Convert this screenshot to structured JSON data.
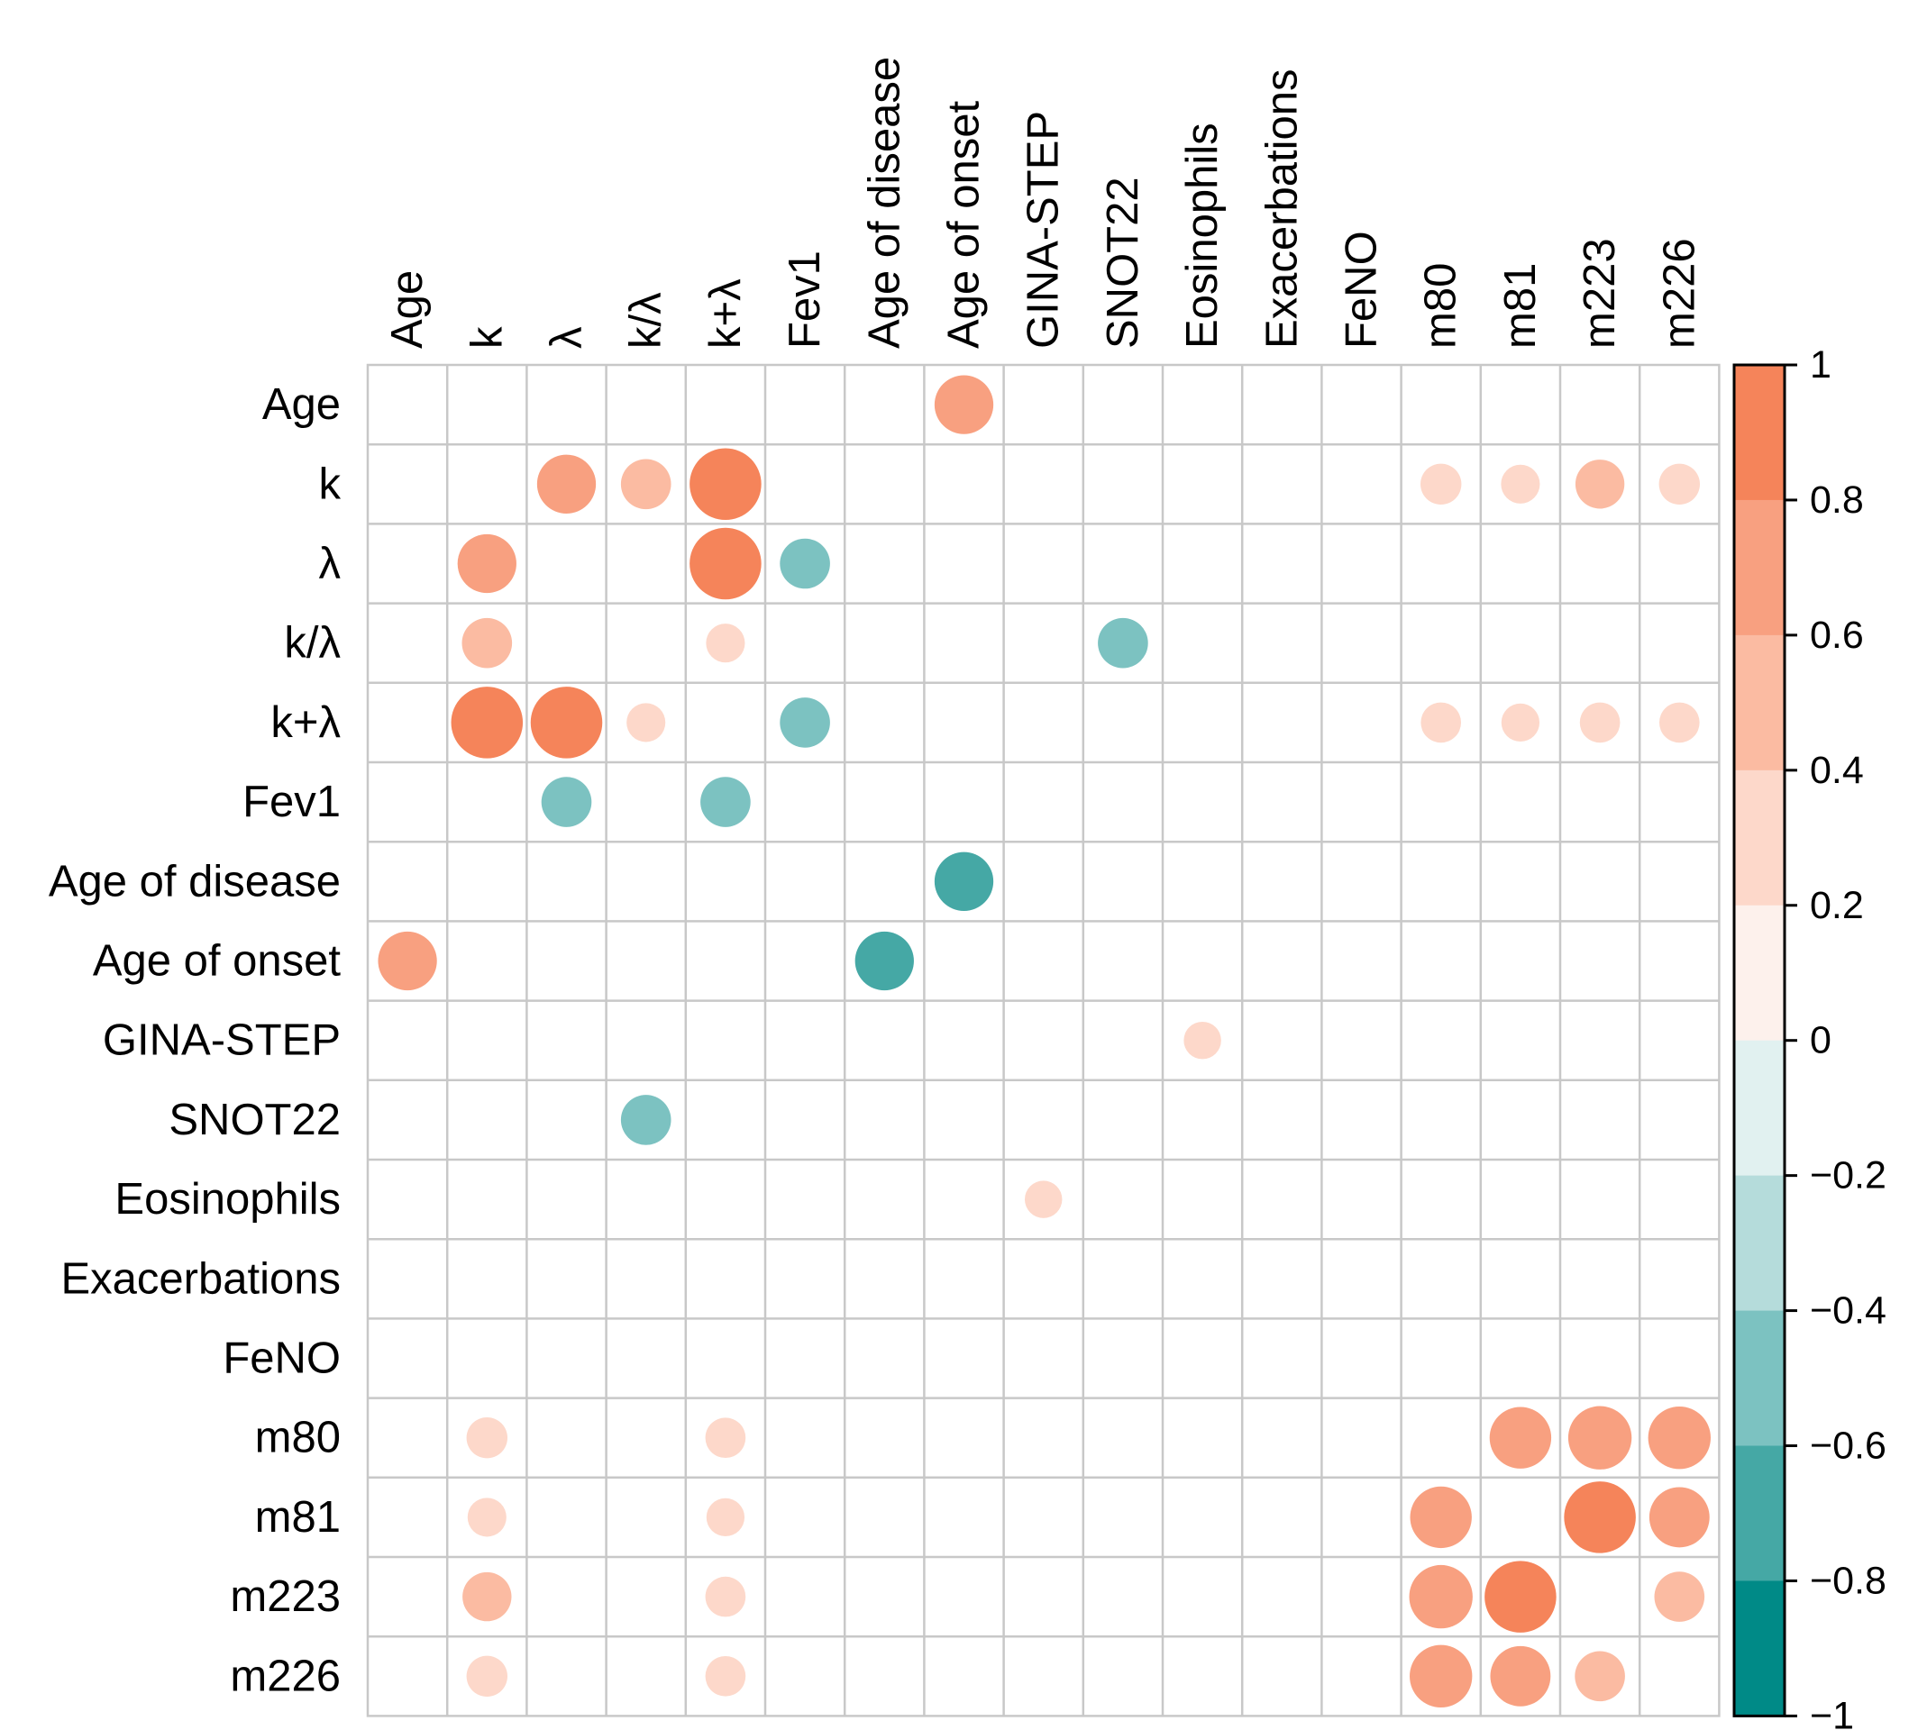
{
  "chart_data": {
    "type": "heatmap",
    "title": "",
    "variables": [
      "Age",
      "k",
      "λ",
      "k/λ",
      "k+λ",
      "Fev1",
      "Age of disease",
      "Age of onset",
      "GINA-STEP",
      "SNOT22",
      "Eosinophils",
      "Exacerbations",
      "FeNO",
      "m80",
      "m81",
      "m223",
      "m226"
    ],
    "cells": [
      {
        "row": "Age",
        "col": "Age of onset",
        "value": 0.62
      },
      {
        "row": "k",
        "col": "λ",
        "value": 0.62
      },
      {
        "row": "k",
        "col": "k/λ",
        "value": 0.45
      },
      {
        "row": "k",
        "col": "k+λ",
        "value": 0.92
      },
      {
        "row": "k",
        "col": "m80",
        "value": 0.3
      },
      {
        "row": "k",
        "col": "m81",
        "value": 0.27
      },
      {
        "row": "k",
        "col": "m223",
        "value": 0.43
      },
      {
        "row": "k",
        "col": "m226",
        "value": 0.3
      },
      {
        "row": "λ",
        "col": "k",
        "value": 0.62
      },
      {
        "row": "λ",
        "col": "k+λ",
        "value": 0.92
      },
      {
        "row": "λ",
        "col": "Fev1",
        "value": -0.45
      },
      {
        "row": "k/λ",
        "col": "k",
        "value": 0.45
      },
      {
        "row": "k/λ",
        "col": "k+λ",
        "value": 0.27
      },
      {
        "row": "k/λ",
        "col": "SNOT22",
        "value": -0.45
      },
      {
        "row": "k+λ",
        "col": "k",
        "value": 0.92
      },
      {
        "row": "k+λ",
        "col": "λ",
        "value": 0.92
      },
      {
        "row": "k+λ",
        "col": "k/λ",
        "value": 0.27
      },
      {
        "row": "k+λ",
        "col": "Fev1",
        "value": -0.45
      },
      {
        "row": "k+λ",
        "col": "m80",
        "value": 0.29
      },
      {
        "row": "k+λ",
        "col": "m81",
        "value": 0.26
      },
      {
        "row": "k+λ",
        "col": "m223",
        "value": 0.29
      },
      {
        "row": "k+λ",
        "col": "m226",
        "value": 0.29
      },
      {
        "row": "Fev1",
        "col": "λ",
        "value": -0.45
      },
      {
        "row": "Fev1",
        "col": "k+λ",
        "value": -0.45
      },
      {
        "row": "Age of disease",
        "col": "Age of onset",
        "value": -0.62
      },
      {
        "row": "Age of onset",
        "col": "Age",
        "value": 0.62
      },
      {
        "row": "Age of onset",
        "col": "Age of disease",
        "value": -0.62
      },
      {
        "row": "GINA-STEP",
        "col": "Eosinophils",
        "value": 0.25
      },
      {
        "row": "SNOT22",
        "col": "k/λ",
        "value": -0.45
      },
      {
        "row": "Eosinophils",
        "col": "GINA-STEP",
        "value": 0.25
      },
      {
        "row": "m80",
        "col": "k",
        "value": 0.3
      },
      {
        "row": "m80",
        "col": "k+λ",
        "value": 0.29
      },
      {
        "row": "m80",
        "col": "m81",
        "value": 0.68
      },
      {
        "row": "m80",
        "col": "m223",
        "value": 0.72
      },
      {
        "row": "m80",
        "col": "m226",
        "value": 0.7
      },
      {
        "row": "m81",
        "col": "k",
        "value": 0.27
      },
      {
        "row": "m81",
        "col": "k+λ",
        "value": 0.26
      },
      {
        "row": "m81",
        "col": "m80",
        "value": 0.68
      },
      {
        "row": "m81",
        "col": "m223",
        "value": 0.92
      },
      {
        "row": "m81",
        "col": "m226",
        "value": 0.65
      },
      {
        "row": "m223",
        "col": "k",
        "value": 0.43
      },
      {
        "row": "m223",
        "col": "k+λ",
        "value": 0.29
      },
      {
        "row": "m223",
        "col": "m80",
        "value": 0.72
      },
      {
        "row": "m223",
        "col": "m81",
        "value": 0.92
      },
      {
        "row": "m223",
        "col": "m226",
        "value": 0.45
      },
      {
        "row": "m226",
        "col": "k",
        "value": 0.3
      },
      {
        "row": "m226",
        "col": "k+λ",
        "value": 0.29
      },
      {
        "row": "m226",
        "col": "m80",
        "value": 0.7
      },
      {
        "row": "m226",
        "col": "m81",
        "value": 0.65
      },
      {
        "row": "m226",
        "col": "m223",
        "value": 0.45
      }
    ],
    "colorbar": {
      "ticks": [
        "1",
        "0.8",
        "0.6",
        "0.4",
        "0.2",
        "0",
        "−0.2",
        "−0.4",
        "−0.6",
        "−0.8",
        "−1"
      ],
      "range": [
        -1,
        1
      ],
      "positive_color": "#f5845a",
      "negative_color": "#008a87",
      "bin_colors_top_to_bottom": [
        "#f5845a",
        "#f8a080",
        "#fbbba2",
        "#fdd8ca",
        "#fdf1ec",
        "#e1f1f0",
        "#b5dcdb",
        "#7cc2c1",
        "#45a8a5",
        "#008a87"
      ]
    },
    "grid": true,
    "legend_position": "right"
  }
}
